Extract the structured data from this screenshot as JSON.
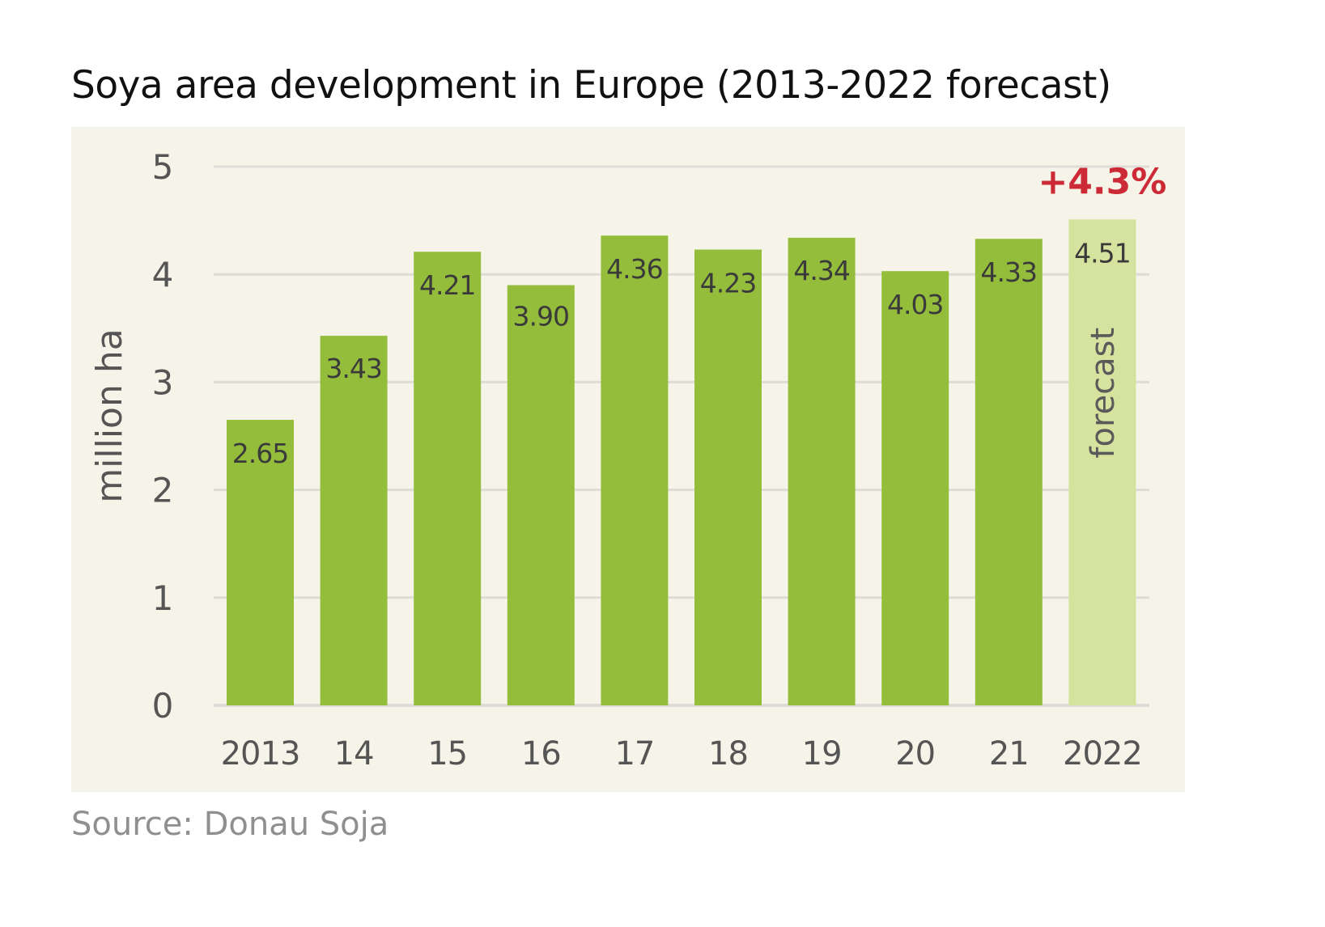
{
  "chart_data": {
    "type": "bar",
    "title": "Soya area development in Europe (2013-2022 forecast)",
    "xlabel": "",
    "ylabel": "million ha",
    "ylim": [
      0,
      5
    ],
    "yticks": [
      "0",
      "1",
      "2",
      "3",
      "4",
      "5"
    ],
    "grid": true,
    "categories": [
      "2013",
      "14",
      "15",
      "16",
      "17",
      "18",
      "19",
      "20",
      "21",
      "2022"
    ],
    "values": [
      2.65,
      3.43,
      4.21,
      3.9,
      4.36,
      4.23,
      4.34,
      4.03,
      4.33,
      4.51
    ],
    "data_labels": [
      "2.65",
      "3.43",
      "4.21",
      "3.90",
      "4.36",
      "4.23",
      "4.34",
      "4.03",
      "4.33",
      "4.51"
    ],
    "forecast_flags": [
      false,
      false,
      false,
      false,
      false,
      false,
      false,
      false,
      false,
      true
    ],
    "forecast_label": "forecast",
    "annotation": "+4.3%",
    "source": "Source: Donau Soja",
    "colors": {
      "bar": "#95bd3c",
      "forecast_bar": "#d6e39f",
      "annotation": "#cc2a36",
      "gridline": "#dedcd6",
      "panel_bg": "#f6f4e8"
    }
  }
}
